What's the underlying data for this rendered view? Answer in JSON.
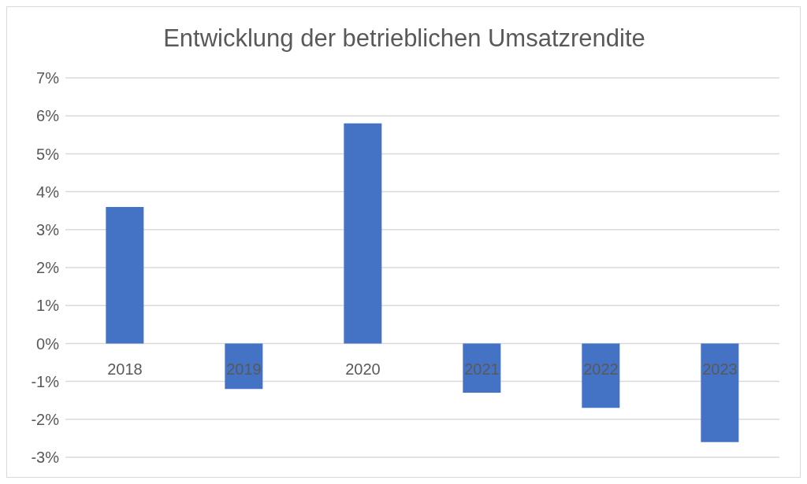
{
  "chart_data": {
    "type": "bar",
    "title": "Entwicklung der betrieblichen Umsatzrendite",
    "categories": [
      "2018",
      "2019",
      "2020",
      "2021",
      "2022",
      "2023"
    ],
    "values": [
      3.6,
      -1.2,
      5.8,
      -1.3,
      -1.7,
      -2.6
    ],
    "color": "#4472c4",
    "ylim": [
      -3,
      7
    ],
    "yticks": [
      {
        "value": -3,
        "label": "-3%"
      },
      {
        "value": -2,
        "label": "-2%"
      },
      {
        "value": -1,
        "label": "-1%"
      },
      {
        "value": 0,
        "label": "0%"
      },
      {
        "value": 1,
        "label": "1%"
      },
      {
        "value": 2,
        "label": "2%"
      },
      {
        "value": 3,
        "label": "3%"
      },
      {
        "value": 4,
        "label": "4%"
      },
      {
        "value": 5,
        "label": "5%"
      },
      {
        "value": 6,
        "label": "6%"
      },
      {
        "value": 7,
        "label": "7%"
      }
    ],
    "grid": "y"
  }
}
